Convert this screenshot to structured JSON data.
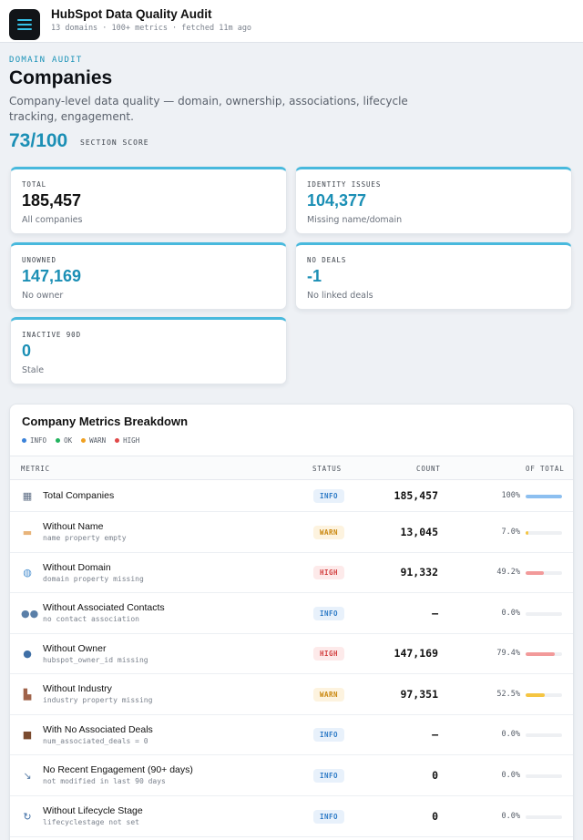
{
  "app": {
    "title": "HubSpot Data Quality Audit",
    "subtitle": "13 domains · 100+ metrics · fetched 11m ago"
  },
  "header": {
    "eyebrow": "DOMAIN AUDIT",
    "title": "Companies",
    "description": "Company-level data quality — domain, ownership, associations, lifecycle tracking, engagement.",
    "score": "73/100",
    "score_label": "SECTION SCORE"
  },
  "stats": [
    {
      "label": "TOTAL",
      "value": "185,457",
      "sub": "All companies",
      "accent": false
    },
    {
      "label": "IDENTITY ISSUES",
      "value": "104,377",
      "sub": "Missing name/domain",
      "accent": true
    },
    {
      "label": "UNOWNED",
      "value": "147,169",
      "sub": "No owner",
      "accent": true
    },
    {
      "label": "NO DEALS",
      "value": "-1",
      "sub": "No linked deals",
      "accent": true
    },
    {
      "label": "INACTIVE 90D",
      "value": "0",
      "sub": "Stale",
      "accent": true
    }
  ],
  "breakdown": {
    "title": "Company Metrics Breakdown",
    "legend": [
      {
        "label": "INFO",
        "color": "#3b82d9"
      },
      {
        "label": "OK",
        "color": "#22b35e"
      },
      {
        "label": "WARN",
        "color": "#f0a020"
      },
      {
        "label": "HIGH",
        "color": "#e04848"
      }
    ],
    "columns": {
      "metric": "METRIC",
      "status": "STATUS",
      "count": "COUNT",
      "of_total": "OF TOTAL"
    },
    "rows": [
      {
        "name": "Total Companies",
        "sub": "",
        "status": "INFO",
        "count": "185,457",
        "pct": "100%",
        "fraction": 1.0,
        "icon": "building-icon",
        "glyph": "▦",
        "icon_color": "#5f6f86"
      },
      {
        "name": "Without Name",
        "sub": "name property empty",
        "status": "WARN",
        "count": "13,045",
        "pct": "7.0%",
        "fraction": 0.07,
        "icon": "tag-icon",
        "glyph": "▬",
        "icon_color": "#e8b47a"
      },
      {
        "name": "Without Domain",
        "sub": "domain property missing",
        "status": "HIGH",
        "count": "91,332",
        "pct": "49.2%",
        "fraction": 0.492,
        "icon": "globe-icon",
        "glyph": "◍",
        "icon_color": "#4a90d0"
      },
      {
        "name": "Without Associated Contacts",
        "sub": "no contact association",
        "status": "INFO",
        "count": "—",
        "pct": "0.0%",
        "fraction": 0,
        "icon": "people-icon",
        "glyph": "●●",
        "icon_color": "#5a7fa8"
      },
      {
        "name": "Without Owner",
        "sub": "hubspot_owner_id missing",
        "status": "HIGH",
        "count": "147,169",
        "pct": "79.4%",
        "fraction": 0.794,
        "icon": "person-icon",
        "glyph": "●",
        "icon_color": "#3f6fa6"
      },
      {
        "name": "Without Industry",
        "sub": "industry property missing",
        "status": "WARN",
        "count": "97,351",
        "pct": "52.5%",
        "fraction": 0.525,
        "icon": "factory-icon",
        "glyph": "▙",
        "icon_color": "#a0634a"
      },
      {
        "name": "With No Associated Deals",
        "sub": "num_associated_deals = 0",
        "status": "INFO",
        "count": "—",
        "pct": "0.0%",
        "fraction": 0,
        "icon": "briefcase-icon",
        "glyph": "■",
        "icon_color": "#7a4a2e"
      },
      {
        "name": "No Recent Engagement (90+ days)",
        "sub": "not modified in last 90 days",
        "status": "INFO",
        "count": "0",
        "pct": "0.0%",
        "fraction": 0,
        "icon": "chart-down-icon",
        "glyph": "↘",
        "icon_color": "#5a7fa8"
      },
      {
        "name": "Without Lifecycle Stage",
        "sub": "lifecyclestage not set",
        "status": "INFO",
        "count": "0",
        "pct": "0.0%",
        "fraction": 0,
        "icon": "cycle-icon",
        "glyph": "↻",
        "icon_color": "#3f6fa6"
      }
    ]
  }
}
